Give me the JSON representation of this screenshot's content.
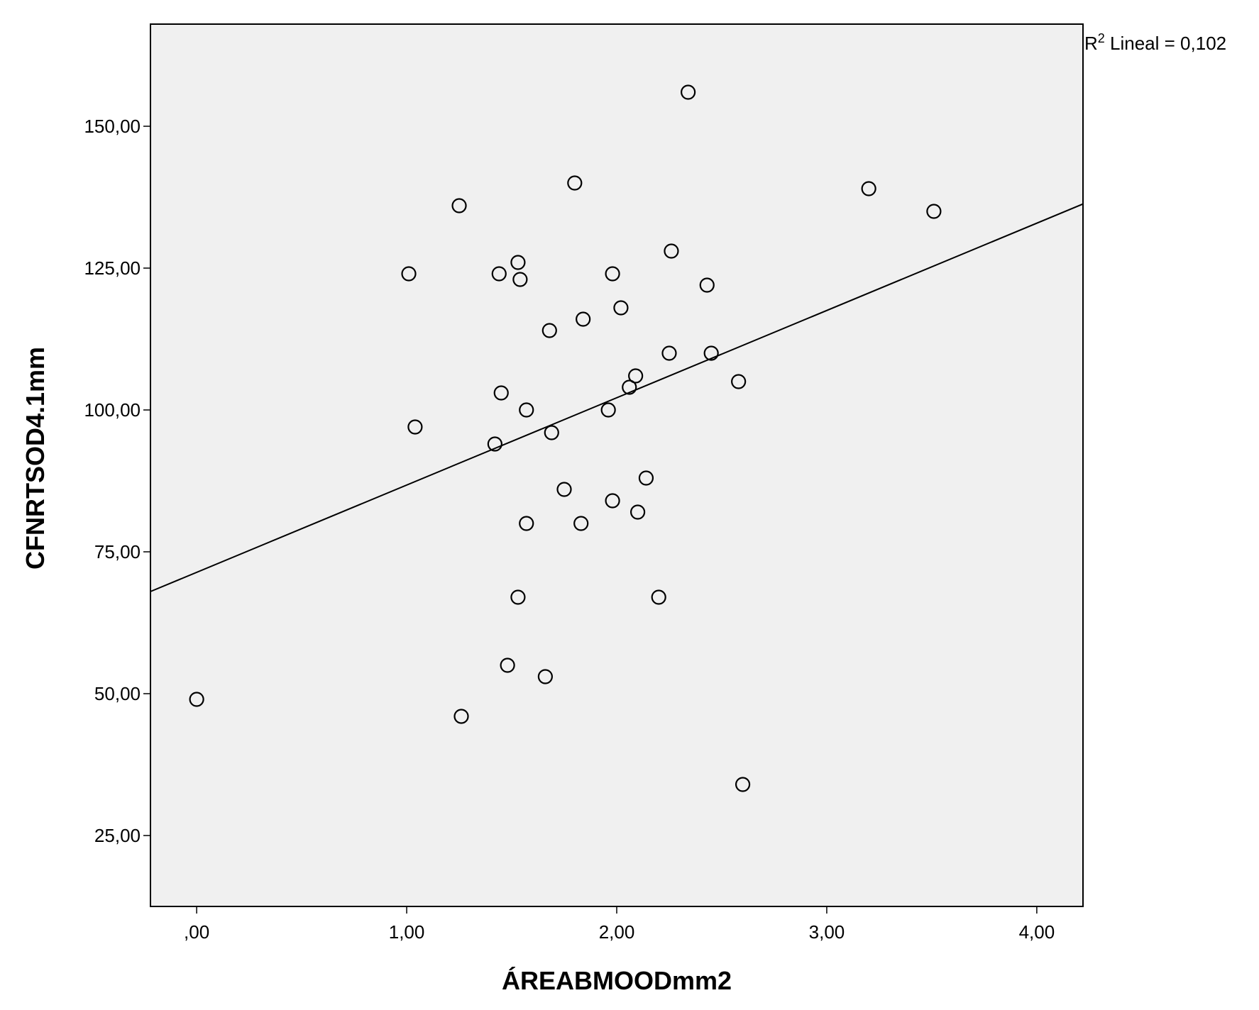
{
  "chart_data": {
    "type": "scatter",
    "title": "",
    "xlabel": "ÁREABMOODmm2",
    "ylabel": "CFNRTSOD4.1mm",
    "xlim": [
      -0.22,
      4.22
    ],
    "ylim": [
      12.5,
      168
    ],
    "x_ticks": [
      0,
      1,
      2,
      3,
      4
    ],
    "x_tick_labels": [
      ",00",
      "1,00",
      "2,00",
      "3,00",
      "4,00"
    ],
    "y_ticks": [
      25,
      50,
      75,
      100,
      125,
      150
    ],
    "y_tick_labels": [
      "25,00",
      "50,00",
      "75,00",
      "100,00",
      "125,00",
      "150,00"
    ],
    "grid": false,
    "background_color": "#f0f0f0",
    "marker_color": "#000000",
    "fit_line": {
      "type": "linear",
      "from": [
        -0.22,
        68
      ],
      "to": [
        4.22,
        136.3
      ],
      "label_prefix": "R",
      "label_superscript": "2",
      "label_suffix": " Lineal = 0,102"
    },
    "points": [
      {
        "x": 0.0,
        "y": 49
      },
      {
        "x": 1.01,
        "y": 124
      },
      {
        "x": 1.04,
        "y": 97
      },
      {
        "x": 1.25,
        "y": 136
      },
      {
        "x": 1.26,
        "y": 46
      },
      {
        "x": 1.42,
        "y": 94
      },
      {
        "x": 1.44,
        "y": 124
      },
      {
        "x": 1.45,
        "y": 103
      },
      {
        "x": 1.48,
        "y": 55
      },
      {
        "x": 1.53,
        "y": 126
      },
      {
        "x": 1.53,
        "y": 67
      },
      {
        "x": 1.54,
        "y": 123
      },
      {
        "x": 1.57,
        "y": 100
      },
      {
        "x": 1.57,
        "y": 80
      },
      {
        "x": 1.66,
        "y": 53
      },
      {
        "x": 1.68,
        "y": 114
      },
      {
        "x": 1.69,
        "y": 96
      },
      {
        "x": 1.75,
        "y": 86
      },
      {
        "x": 1.8,
        "y": 140
      },
      {
        "x": 1.83,
        "y": 80
      },
      {
        "x": 1.84,
        "y": 116
      },
      {
        "x": 1.96,
        "y": 100
      },
      {
        "x": 1.98,
        "y": 124
      },
      {
        "x": 1.98,
        "y": 84
      },
      {
        "x": 2.02,
        "y": 118
      },
      {
        "x": 2.06,
        "y": 104
      },
      {
        "x": 2.09,
        "y": 106
      },
      {
        "x": 2.1,
        "y": 82
      },
      {
        "x": 2.14,
        "y": 88
      },
      {
        "x": 2.2,
        "y": 67
      },
      {
        "x": 2.25,
        "y": 110
      },
      {
        "x": 2.26,
        "y": 128
      },
      {
        "x": 2.34,
        "y": 156
      },
      {
        "x": 2.43,
        "y": 122
      },
      {
        "x": 2.45,
        "y": 110
      },
      {
        "x": 2.58,
        "y": 105
      },
      {
        "x": 2.6,
        "y": 34
      },
      {
        "x": 3.2,
        "y": 139
      },
      {
        "x": 3.51,
        "y": 135
      }
    ]
  }
}
